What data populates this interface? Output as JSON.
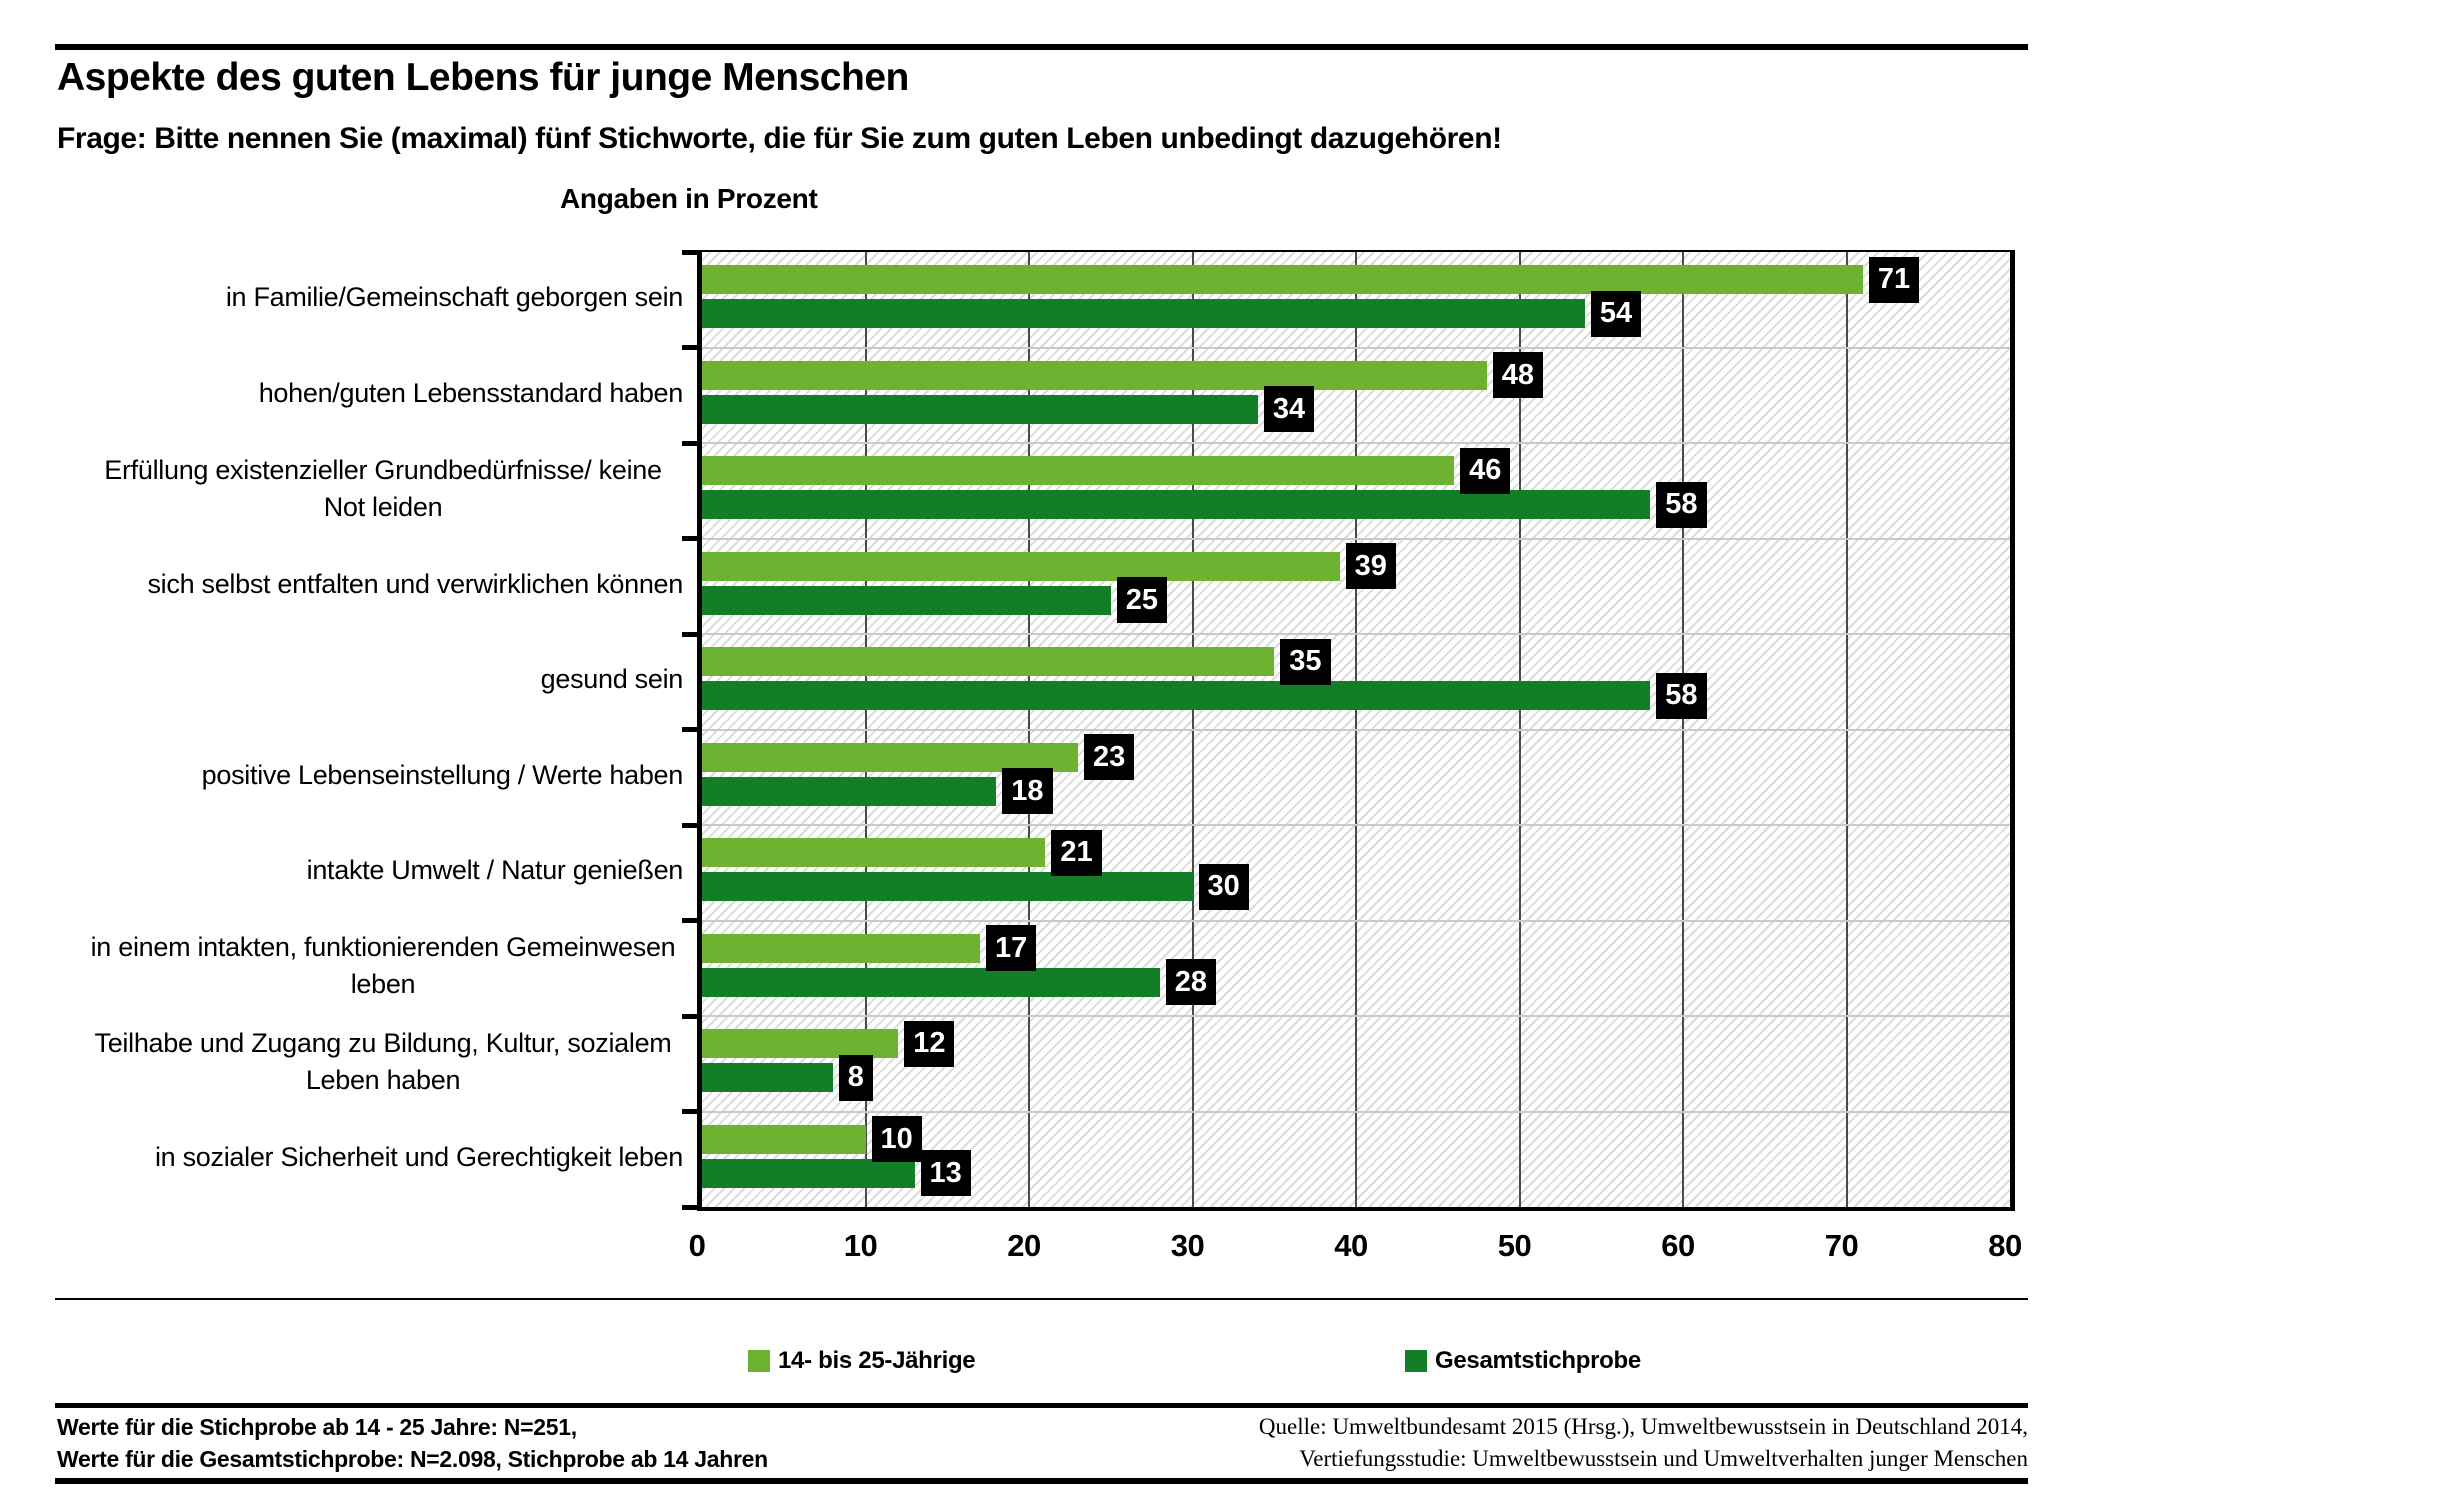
{
  "header": {
    "title": "Aspekte des guten Lebens für junge Menschen",
    "subtitle": "Frage: Bitte nennen Sie (maximal) fünf Stichworte, die für Sie zum guten Leben unbedingt dazugehören!",
    "units_label": "Angaben in Prozent"
  },
  "colors": {
    "series1": "#6EB232",
    "series2": "#147D28",
    "value_box_bg": "#000000",
    "value_box_text": "#FFFFFF",
    "hatch_line": "#DBDBDB",
    "vgrid": "#4A4A4A",
    "rowline": "#C9C9C9"
  },
  "chart_data": {
    "type": "bar",
    "orientation": "horizontal",
    "title": "Aspekte des guten Lebens für junge Menschen",
    "xlabel": "Angaben in Prozent",
    "xlim": [
      0,
      80
    ],
    "xticks": [
      0,
      10,
      20,
      30,
      40,
      50,
      60,
      70,
      80
    ],
    "grid": true,
    "legend_position": "bottom",
    "value_labels": true,
    "categories": [
      "in Familie/Gemeinschaft geborgen sein",
      "hohen/guten Lebensstandard haben",
      "Erfüllung existenzieller Grundbedürfnisse/ keine Not leiden",
      "sich selbst entfalten und verwirklichen können",
      "gesund sein",
      "positive Lebenseinstellung / Werte haben",
      "intakte Umwelt / Natur genießen",
      "in einem intakten, funktionierenden Gemeinwesen leben",
      "Teilhabe und Zugang zu Bildung, Kultur, sozialem Leben haben",
      "in sozialer Sicherheit und Gerechtigkeit leben"
    ],
    "series": [
      {
        "name": "14- bis 25-Jährige",
        "color": "#6EB232",
        "values": [
          71,
          48,
          46,
          39,
          35,
          23,
          21,
          17,
          12,
          10
        ]
      },
      {
        "name": "Gesamtstichprobe",
        "color": "#147D28",
        "values": [
          54,
          34,
          58,
          25,
          58,
          18,
          30,
          28,
          8,
          13
        ]
      }
    ]
  },
  "legend": {
    "items": [
      {
        "label": "14- bis 25-Jährige",
        "color": "#6EB232"
      },
      {
        "label": "Gesamtstichprobe",
        "color": "#147D28"
      }
    ]
  },
  "footer": {
    "left_line1": "Werte für die Stichprobe ab 14 - 25 Jahre: N=251,",
    "left_line2": "Werte für die Gesamtstichprobe: N=2.098, Stichprobe ab 14 Jahren",
    "right_line1": "Quelle: Umweltbundesamt 2015 (Hrsg.), Umweltbewusstsein in Deutschland 2014,",
    "right_line2": "Vertiefungsstudie: Umweltbewusstsein und Umweltverhalten junger Menschen"
  }
}
